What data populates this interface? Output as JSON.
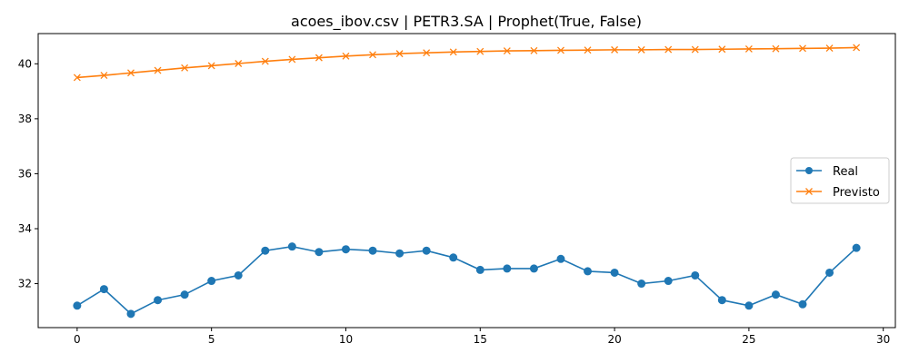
{
  "chart_data": {
    "type": "line",
    "title": "acoes_ibov.csv | PETR3.SA | Prophet(True, False)",
    "xlabel": "",
    "ylabel": "",
    "xlim": [
      -1.45,
      30.45
    ],
    "ylim": [
      30.4,
      41.1
    ],
    "xticks": [
      0,
      5,
      10,
      15,
      20,
      25,
      30
    ],
    "yticks": [
      32,
      34,
      36,
      38,
      40
    ],
    "grid": false,
    "legend_position": "center-right",
    "x": [
      0,
      1,
      2,
      3,
      4,
      5,
      6,
      7,
      8,
      9,
      10,
      11,
      12,
      13,
      14,
      15,
      16,
      17,
      18,
      19,
      20,
      21,
      22,
      23,
      24,
      25,
      26,
      27,
      28,
      29
    ],
    "series": [
      {
        "name": "Real",
        "color": "#1f77b4",
        "marker": "circle",
        "values": [
          31.2,
          31.8,
          30.9,
          31.4,
          31.6,
          32.1,
          32.3,
          33.2,
          33.35,
          33.15,
          33.25,
          33.2,
          33.1,
          33.2,
          32.95,
          32.5,
          32.55,
          32.55,
          32.9,
          32.45,
          32.4,
          32.0,
          32.1,
          32.3,
          31.4,
          31.2,
          31.6,
          31.25,
          32.4,
          33.3
        ]
      },
      {
        "name": "Previsto",
        "color": "#ff7f0e",
        "marker": "x",
        "values": [
          39.5,
          39.58,
          39.67,
          39.76,
          39.85,
          39.93,
          40.01,
          40.09,
          40.16,
          40.22,
          40.28,
          40.33,
          40.37,
          40.4,
          40.43,
          40.45,
          40.47,
          40.48,
          40.49,
          40.5,
          40.51,
          40.51,
          40.52,
          40.52,
          40.53,
          40.54,
          40.55,
          40.56,
          40.57,
          40.59
        ]
      }
    ]
  }
}
